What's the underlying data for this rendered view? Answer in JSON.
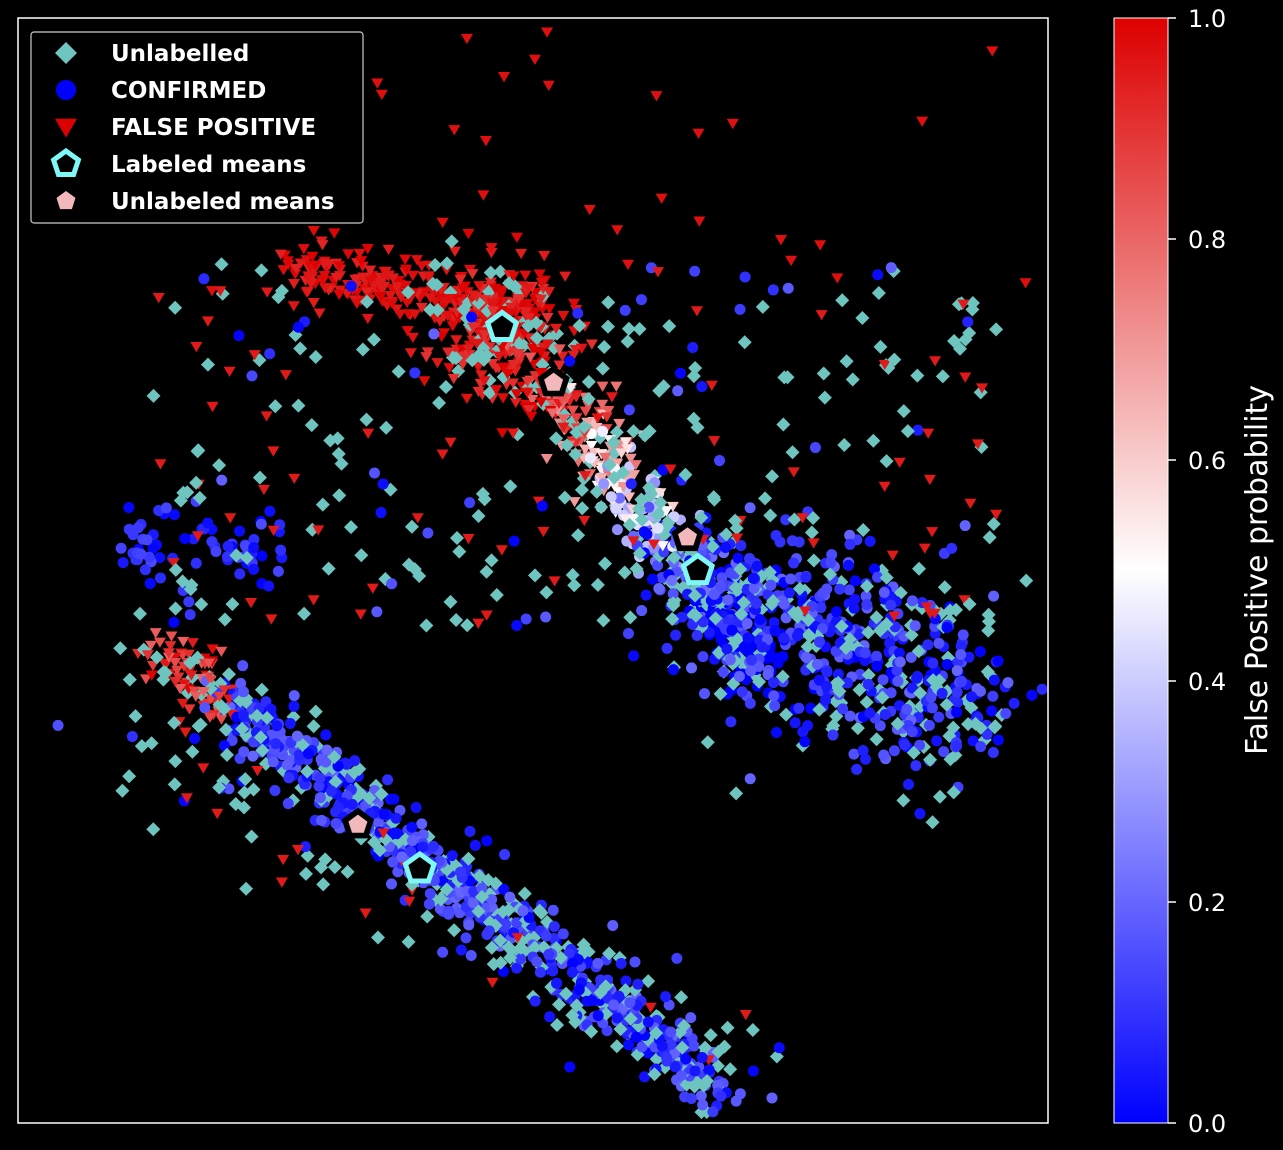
{
  "chart_data": {
    "type": "scatter",
    "title": "",
    "xlabel": "",
    "ylabel": "",
    "axes_ticks_visible": false,
    "grid": false,
    "background": "#000000",
    "legend_placement": "top-left",
    "legend": [
      {
        "label": "Unlabelled",
        "marker": "diamond",
        "color": "#6ec4be"
      },
      {
        "label": "CONFIRMED",
        "marker": "circle",
        "color": "#0000ff"
      },
      {
        "label": "FALSE POSITIVE",
        "marker": "triangle-down",
        "color": "#dd0000"
      },
      {
        "label": "Labeled means",
        "marker": "pentagon-outline",
        "color": "#7ff7f7"
      },
      {
        "label": "Unlabeled means",
        "marker": "pentagon",
        "color": "#f2b8bc"
      }
    ],
    "colorbar": {
      "label": "False Positive probability",
      "colormap": "bwr",
      "min": 0.0,
      "max": 1.0,
      "ticks": [
        "0.0",
        "0.2",
        "0.4",
        "0.6",
        "0.8",
        "1.0"
      ],
      "colors": [
        "#0000ff",
        "#ffffff",
        "#dd0000"
      ]
    },
    "labeled_means": [
      {
        "x": 0.47,
        "y": 0.72
      },
      {
        "x": 0.66,
        "y": 0.5
      },
      {
        "x": 0.39,
        "y": 0.23
      }
    ],
    "unlabeled_means": [
      {
        "x": 0.52,
        "y": 0.67
      },
      {
        "x": 0.65,
        "y": 0.53
      },
      {
        "x": 0.33,
        "y": 0.27
      }
    ],
    "clusters": [
      {
        "name_hint": "upper wing",
        "from": [
          0.29,
          0.76
        ],
        "to": [
          0.47,
          0.74
        ],
        "spread": 0.015
      },
      {
        "name_hint": "upper diagonal",
        "from": [
          0.48,
          0.7
        ],
        "to": [
          0.71,
          0.42
        ],
        "spread": 0.02
      },
      {
        "name_hint": "right lobe",
        "from": [
          0.62,
          0.52
        ],
        "to": [
          0.92,
          0.4
        ],
        "spread": 0.05
      },
      {
        "name_hint": "lower diagonal",
        "from": [
          0.14,
          0.42
        ],
        "to": [
          0.68,
          0.03
        ],
        "spread": 0.015
      }
    ]
  }
}
